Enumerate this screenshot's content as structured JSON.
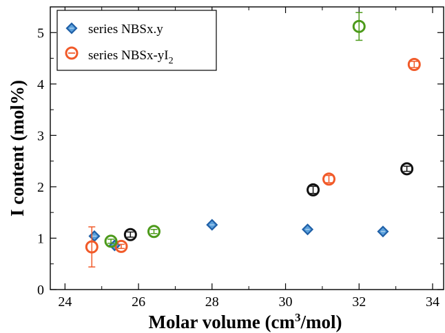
{
  "chart_data": {
    "type": "scatter",
    "title": "",
    "xlabel": {
      "main": "Molar volume (cm",
      "sup": "3",
      "tail": "/mol)"
    },
    "ylabel": "I content (mol%)",
    "xlim": [
      23.6,
      34.3
    ],
    "ylim": [
      0,
      5.5
    ],
    "xticks": [
      24,
      26,
      28,
      30,
      32,
      34
    ],
    "yticks": [
      0,
      1,
      2,
      3,
      4,
      5
    ],
    "grid": false,
    "legend_position": "top-left",
    "legend": [
      {
        "label_main": "series NBSx.y",
        "label_sub": "",
        "marker": "diamond",
        "color": "#1f5fa6"
      },
      {
        "label_main": "series NBSx-yI",
        "label_sub": "2",
        "marker": "circle",
        "color": "#f15a29"
      }
    ],
    "series": [
      {
        "marker": "diamond",
        "color": "#1f5fa6",
        "fill": "#5aa0dc",
        "points": [
          {
            "x": 24.8,
            "y": 1.04
          },
          {
            "x": 25.35,
            "y": 0.86
          },
          {
            "x": 28.0,
            "y": 1.26
          },
          {
            "x": 30.6,
            "y": 1.17
          },
          {
            "x": 32.65,
            "y": 1.13
          }
        ]
      },
      {
        "marker": "circle",
        "color": "#f15a29",
        "points": [
          {
            "x": 24.73,
            "y": 0.83,
            "err": 0.39
          },
          {
            "x": 25.53,
            "y": 0.84,
            "err": 0.04
          },
          {
            "x": 31.18,
            "y": 2.15,
            "err": 0.07
          },
          {
            "x": 33.5,
            "y": 4.38,
            "err": 0.06
          }
        ]
      },
      {
        "marker": "circle",
        "color": "#4c9a1a",
        "points": [
          {
            "x": 25.25,
            "y": 0.94,
            "err": 0.04
          },
          {
            "x": 26.42,
            "y": 1.13,
            "err": 0.04
          },
          {
            "x": 32.0,
            "y": 5.12,
            "err": 0.27
          }
        ]
      },
      {
        "marker": "circle",
        "color": "#111111",
        "points": [
          {
            "x": 25.78,
            "y": 1.07,
            "err": 0.05
          },
          {
            "x": 30.75,
            "y": 1.94,
            "err": 0.07
          },
          {
            "x": 33.3,
            "y": 2.35,
            "err": 0.05
          }
        ]
      }
    ]
  }
}
